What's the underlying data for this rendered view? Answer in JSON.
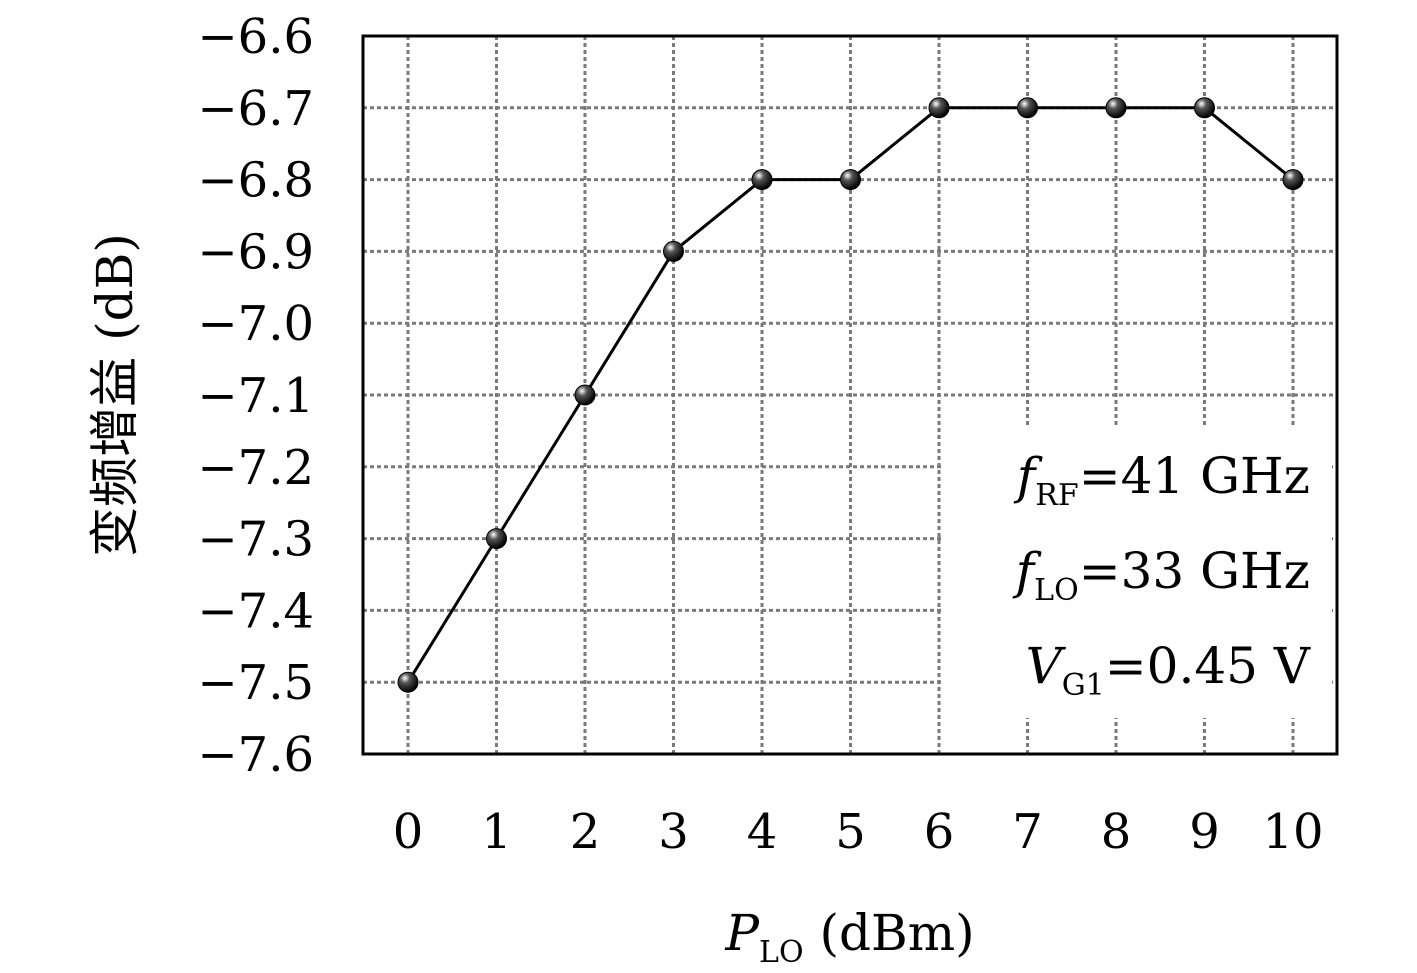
{
  "chart_data": {
    "type": "line",
    "xlabel": {
      "main": "P",
      "sub": "LO",
      "unit": " (dBm)"
    },
    "ylabel": "变频增益 (dB)",
    "x": [
      0,
      1,
      2,
      3,
      4,
      5,
      6,
      7,
      8,
      9,
      10
    ],
    "series": [
      {
        "values": [
          -7.5,
          -7.3,
          -7.1,
          -6.9,
          -6.8,
          -6.8,
          -6.7,
          -6.7,
          -6.7,
          -6.7,
          -6.8
        ]
      }
    ],
    "xlim": [
      0,
      10
    ],
    "ylim": [
      -7.6,
      -6.6
    ],
    "xticks": [
      "0",
      "1",
      "2",
      "3",
      "4",
      "5",
      "6",
      "7",
      "8",
      "9",
      "10"
    ],
    "yticks": [
      "−6.6",
      "−6.7",
      "−6.8",
      "−6.9",
      "−7.0",
      "−7.1",
      "−7.2",
      "−7.3",
      "−7.4",
      "−7.5",
      "−7.6"
    ],
    "ytick_values": [
      -6.6,
      -6.7,
      -6.8,
      -6.9,
      -7.0,
      -7.1,
      -7.2,
      -7.3,
      -7.4,
      -7.5,
      -7.6
    ],
    "grid": true,
    "annotations": [
      {
        "sym": "f",
        "sub": "RF",
        "rest": "=41 GHz"
      },
      {
        "sym": "f",
        "sub": "LO",
        "rest": "=33 GHz"
      },
      {
        "sym": "V",
        "sub": "G1",
        "rest": "=0.45 V"
      }
    ],
    "line_color": "#000000",
    "grid_color": "#7a7a7a"
  }
}
